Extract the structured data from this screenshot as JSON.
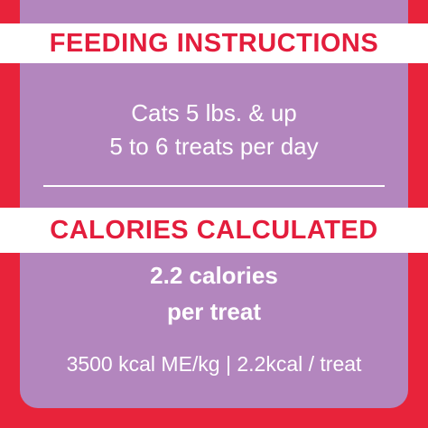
{
  "feeding": {
    "title": "FEEDING INSTRUCTIONS",
    "line1": "Cats 5 lbs. & up",
    "line2": "5 to 6 treats per day"
  },
  "calories": {
    "title": "CALORIES CALCULATED",
    "line1": "2.2 calories",
    "line2": "per treat",
    "detail": "3500 kcal ME/kg | 2.2kcal / treat"
  },
  "colors": {
    "red": "#e8233a",
    "purple": "#b386be",
    "white": "#ffffff"
  }
}
